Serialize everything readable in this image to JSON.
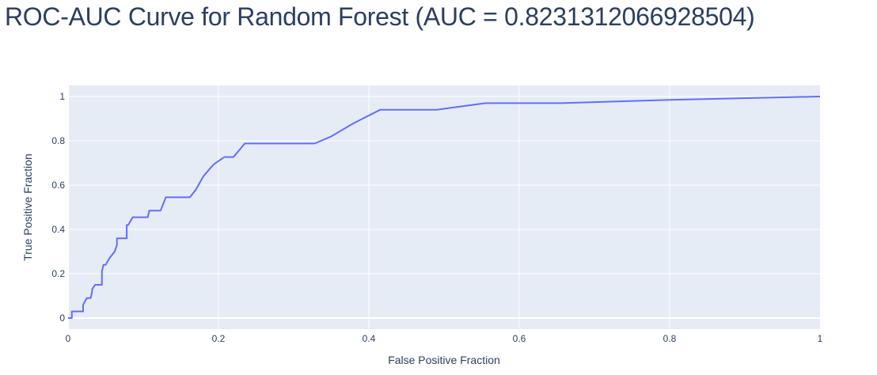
{
  "chart_data": {
    "type": "line",
    "title": "ROC-AUC Curve for Random Forest (AUC = 0.8231312066928504)",
    "xlabel": "False Positive Fraction",
    "ylabel": "True Positive Fraction",
    "xlim": [
      0,
      1
    ],
    "ylim": [
      -0.05,
      1.05
    ],
    "x_ticks": [
      "0",
      "0.2",
      "0.4",
      "0.6",
      "0.8",
      "1"
    ],
    "x_tick_values": [
      0,
      0.2,
      0.4,
      0.6,
      0.8,
      1
    ],
    "y_ticks": [
      "0",
      "0.2",
      "0.4",
      "0.6",
      "0.8",
      "1"
    ],
    "y_tick_values": [
      0,
      0.2,
      0.4,
      0.6,
      0.8,
      1
    ],
    "grid": true,
    "legend": "none",
    "colors": {
      "plot_bg": "#e5ecf6",
      "grid": "#ffffff",
      "line": "#636efa",
      "text": "#2a3f5f"
    },
    "series": [
      {
        "x": [
          0,
          0.005,
          0.005,
          0.02,
          0.02,
          0.025,
          0.03,
          0.032,
          0.032,
          0.036,
          0.045,
          0.045,
          0.047,
          0.05,
          0.055,
          0.062,
          0.065,
          0.065,
          0.078,
          0.078,
          0.08,
          0.086,
          0.106,
          0.108,
          0.123,
          0.13,
          0.162,
          0.17,
          0.18,
          0.19,
          0.195,
          0.208,
          0.22,
          0.235,
          0.245,
          0.328,
          0.35,
          0.38,
          0.415,
          0.49,
          0.555,
          0.655,
          0.8,
          1.0
        ],
        "y": [
          0,
          0,
          0.03,
          0.03,
          0.06,
          0.09,
          0.09,
          0.12,
          0.13,
          0.15,
          0.15,
          0.21,
          0.24,
          0.24,
          0.27,
          0.3,
          0.33,
          0.36,
          0.36,
          0.42,
          0.42,
          0.455,
          0.455,
          0.485,
          0.485,
          0.545,
          0.545,
          0.58,
          0.64,
          0.68,
          0.697,
          0.727,
          0.727,
          0.788,
          0.788,
          0.788,
          0.82,
          0.88,
          0.94,
          0.94,
          0.97,
          0.97,
          0.985,
          1.0
        ]
      }
    ]
  }
}
